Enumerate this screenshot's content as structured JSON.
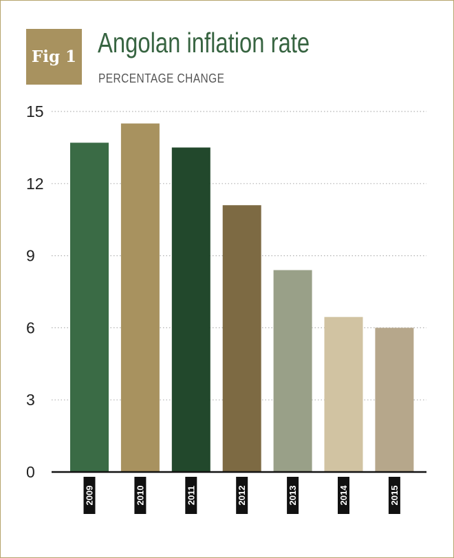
{
  "badge": "Fig 1",
  "chart_data": {
    "type": "bar",
    "title": "Angolan inflation rate",
    "subtitle": "PERCENTAGE CHANGE",
    "xlabel": "",
    "ylabel": "",
    "categories": [
      "2009",
      "2010",
      "2011",
      "2012",
      "2013",
      "2014",
      "2015"
    ],
    "values": [
      13.7,
      14.5,
      13.5,
      11.1,
      8.4,
      6.45,
      6.0
    ],
    "colors": [
      "#3a6b45",
      "#a8925f",
      "#22482c",
      "#7d6a43",
      "#99a088",
      "#d1c3a2",
      "#b6a78b"
    ],
    "ylim": [
      0,
      15
    ],
    "yticks": [
      0,
      3,
      6,
      9,
      12,
      15
    ],
    "grid": true
  }
}
